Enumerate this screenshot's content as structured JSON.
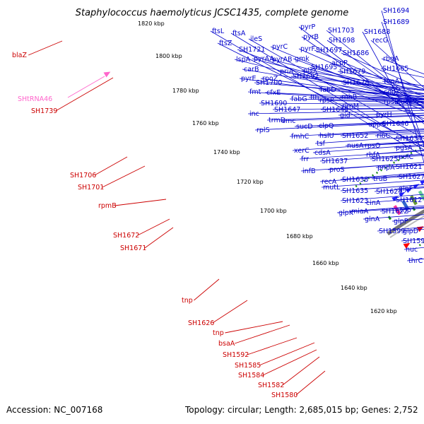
{
  "title": "Staphylococcus haemolyticus JCSC1435, complete genome",
  "footer": {
    "accession": "Accession: NC_007168",
    "summary": "Topology: circular; Length: 2,685,015 bp; Genes: 2,752"
  },
  "colors": {
    "forward_label": "#0000cc",
    "reverse_label": "#cc0000",
    "rna_label": "#ff66cc",
    "arrow_blue": "#1f1fff",
    "arrow_red": "#ff0000",
    "gc_dots": "#1a8a1a",
    "backbone": "#777777"
  },
  "kbp_ticks": [
    "1820 kbp",
    "1800 kbp",
    "1780 kbp",
    "1760 kbp",
    "1740 kbp",
    "1720 kbp",
    "1700 kbp",
    "1680 kbp",
    "1660 kbp",
    "1640 kbp",
    "1620 kbp"
  ],
  "blue_labels": [
    "SH1694",
    "SH1689",
    "SH1688",
    "ftsL",
    "ftsA",
    "ftsZ",
    "ileS",
    "pyrP",
    "pyrB",
    "SH1703",
    "SH1698",
    "recG",
    "SH1721",
    "pyrC",
    "pyrF",
    "gmk",
    "SH1697",
    "SH1686",
    "lspA",
    "pyrAA",
    "pyrAB",
    "SH1695",
    "acpP",
    "rbgA",
    "carB",
    "pyrE",
    "rpoZ",
    "priA",
    "plsX",
    "SH1679",
    "SH1665",
    "fmt",
    "SH1700",
    "SH1692",
    "fabD",
    "SH1678",
    "topA",
    "cfxE",
    "rpsP",
    "rnhB",
    "codY",
    "SH1690",
    "fabG",
    "ffh",
    "rpsB",
    "SH1649",
    "rimM",
    "succ",
    "SH1647",
    "inc",
    "smc",
    "trmD",
    "pyrH",
    "gid",
    "rplS",
    "sucD",
    "clpQ",
    "uppS",
    "SH1646",
    "fmhC",
    "hslU",
    "tsf",
    "SH1652",
    "ribC",
    "SH1634",
    "xerC",
    "cdsA",
    "rbfA",
    "nusA",
    "rpsO",
    "pgsA",
    "frr",
    "SH1637",
    "SH1625",
    "polC",
    "proS",
    "infB",
    "SH1638",
    "pnpA",
    "SH1621",
    "recA",
    "truB",
    "SH1627",
    "mutL",
    "SH1635",
    "SH1624",
    "glpF",
    "SH1623",
    "cinA",
    "SH1612",
    "tnp",
    "miaA",
    "SH1622",
    "glpK",
    "glnA",
    "glpP",
    "SH1599",
    "glpD",
    "SH1593",
    "nuc",
    "thrC"
  ],
  "red_labels": [
    "blaZ",
    "SH1739",
    "SH1706",
    "SH1701",
    "rpmB",
    "SH1672",
    "SH1671",
    "tnp",
    "SH1626",
    "tnp",
    "bsaA",
    "SH1592",
    "SH1585",
    "SH1584",
    "SH1582",
    "SH1580"
  ],
  "rna_labels": [
    "SHtRNA46"
  ]
}
